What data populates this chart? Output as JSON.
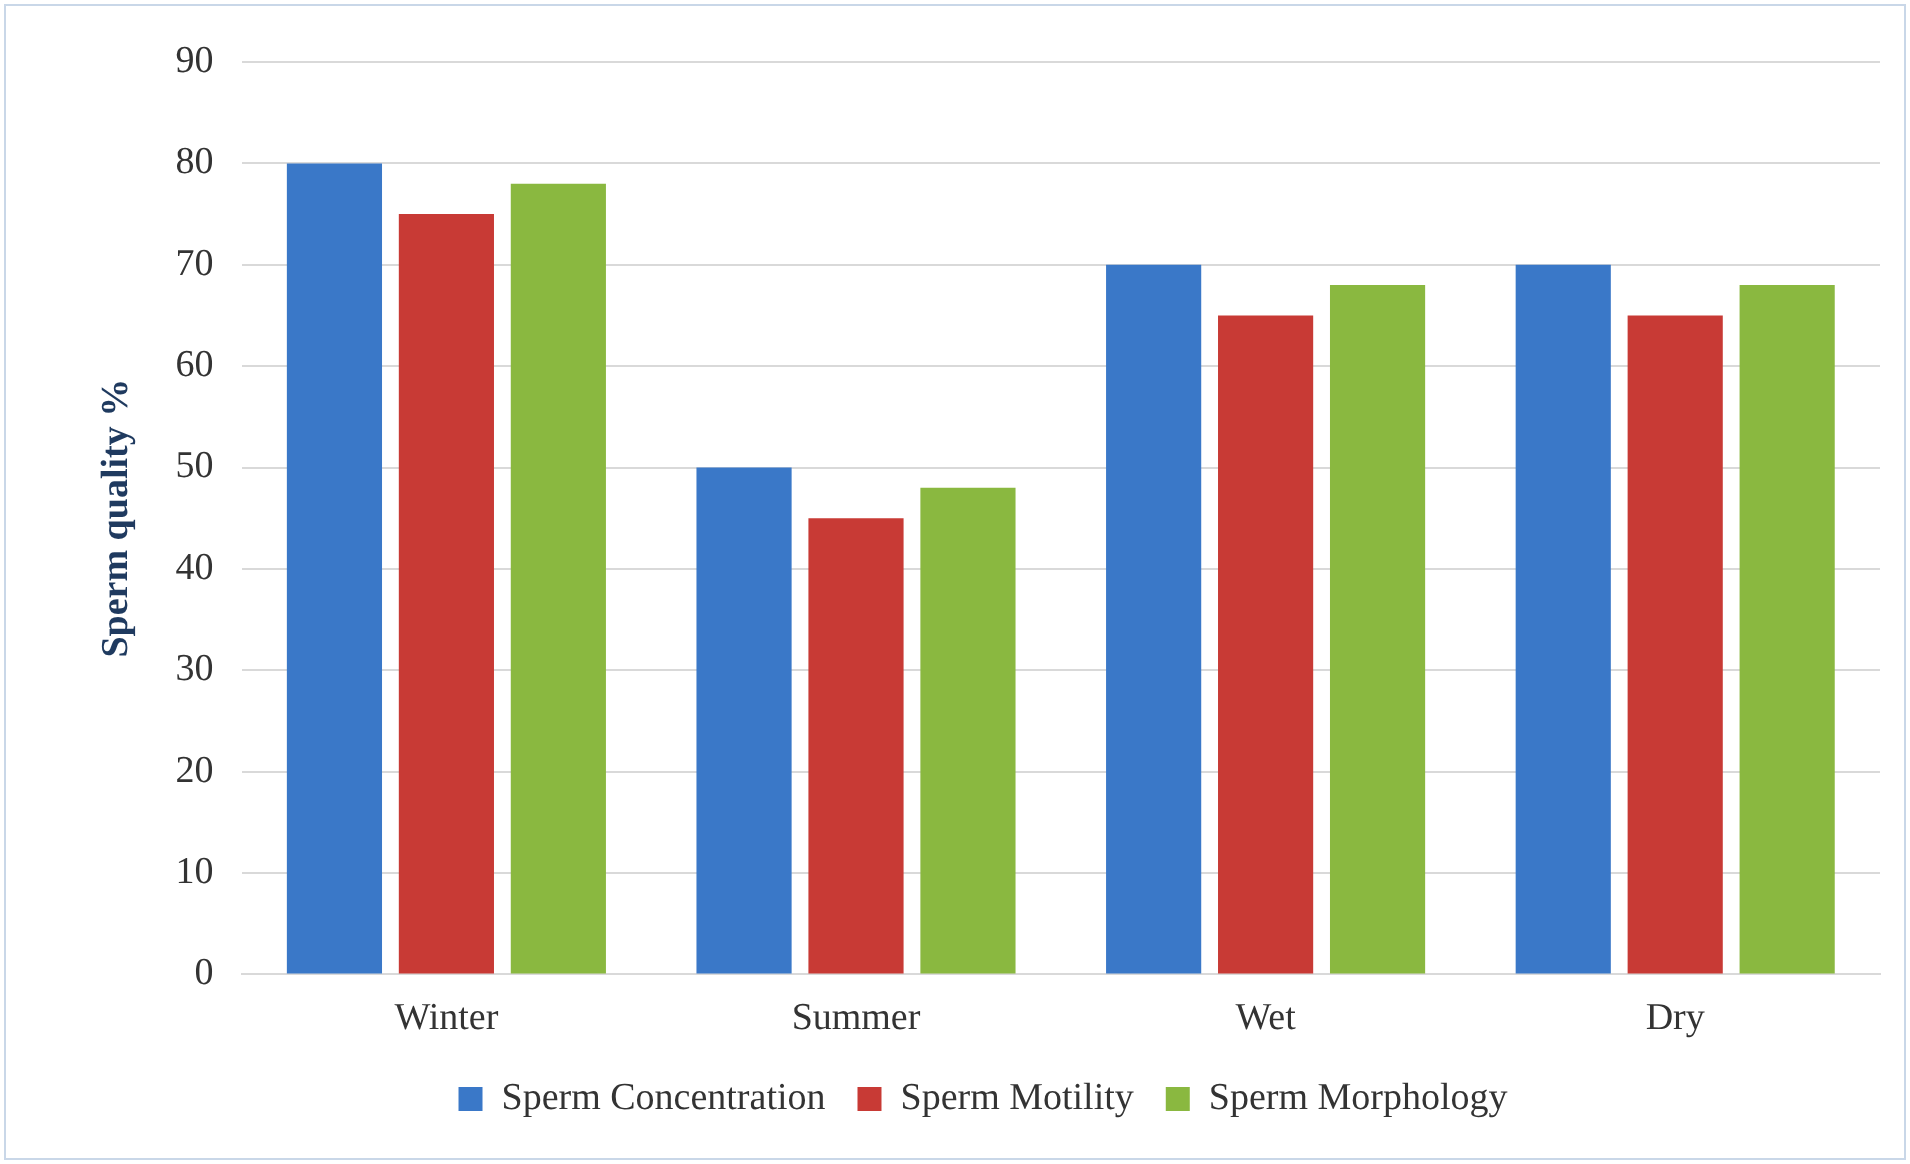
{
  "chart_data": {
    "type": "bar",
    "ylabel": "Sperm quality %",
    "categories": [
      "Winter",
      "Summer",
      "Wet",
      "Dry"
    ],
    "series": [
      {
        "name": "Sperm Concentration",
        "color": "#3a78c8",
        "values": [
          80,
          50,
          70,
          70
        ]
      },
      {
        "name": "Sperm Motility",
        "color": "#c83a35",
        "values": [
          75,
          45,
          65,
          65
        ]
      },
      {
        "name": "Sperm Morphology",
        "color": "#8ab840",
        "values": [
          78,
          48,
          68,
          68
        ]
      }
    ],
    "ylim": [
      0,
      90
    ],
    "yticks": [
      0,
      10,
      20,
      30,
      40,
      50,
      60,
      70,
      80,
      90
    ],
    "grid": "y",
    "legend": "bottom"
  }
}
